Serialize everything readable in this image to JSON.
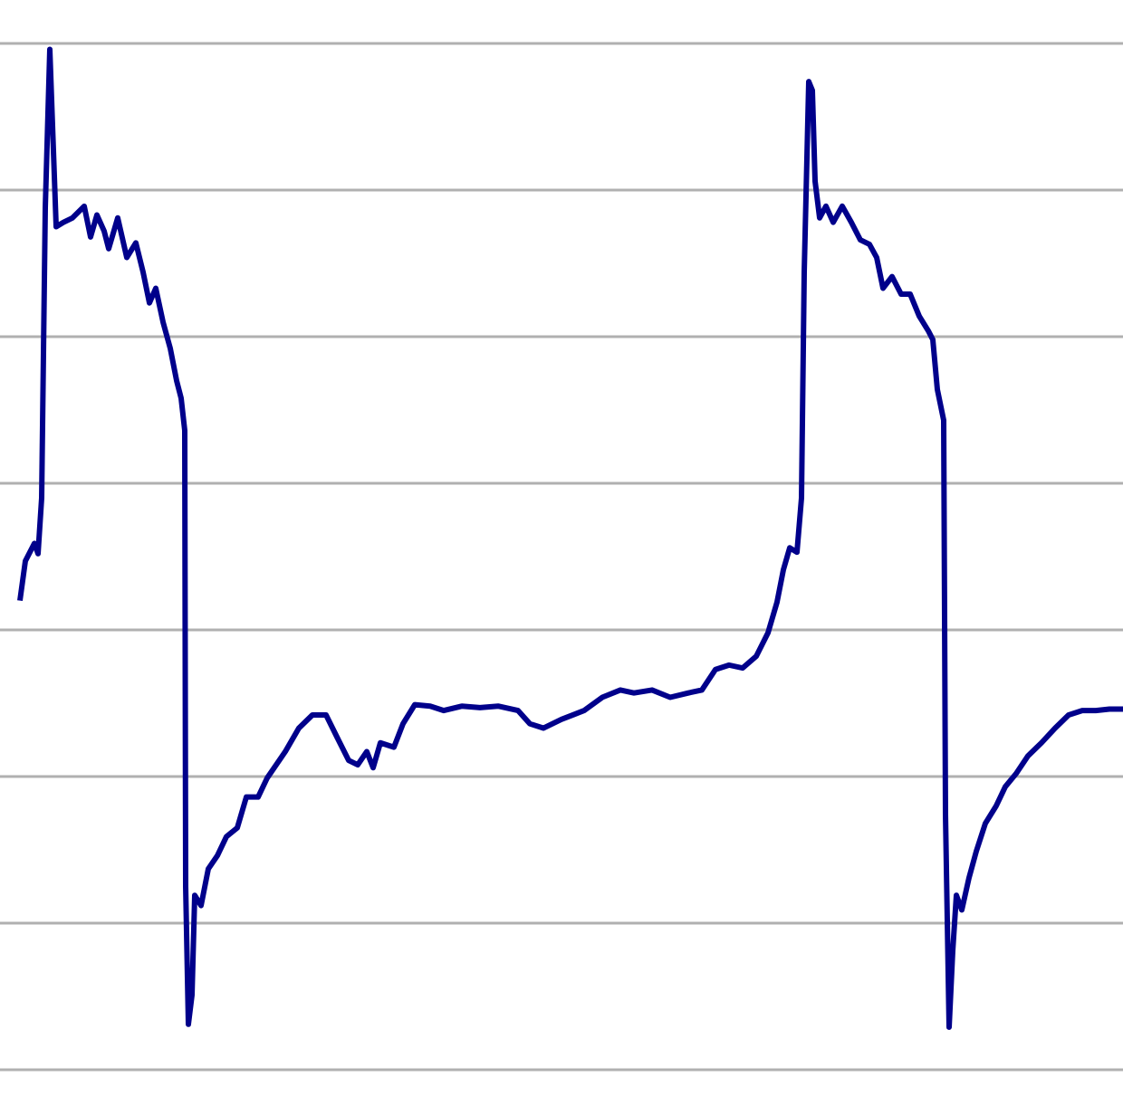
{
  "chart_data": {
    "type": "line",
    "color": "#00008b",
    "grid": true,
    "ylim": [
      0,
      7
    ],
    "yticks": [
      0,
      1,
      2,
      3,
      4,
      5,
      6,
      7
    ],
    "xlim": [
      0,
      1218
    ],
    "x": [
      0,
      6,
      16,
      20,
      24,
      28,
      33,
      40,
      48,
      58,
      71,
      78,
      85,
      93,
      98,
      108,
      118,
      128,
      136,
      143,
      150,
      158,
      166,
      173,
      178,
      182,
      183,
      186,
      190,
      193,
      200,
      208,
      218,
      228,
      240,
      250,
      263,
      273,
      283,
      293,
      308,
      323,
      338,
      350,
      363,
      373,
      383,
      390,
      398,
      413,
      423,
      436,
      453,
      468,
      488,
      508,
      528,
      550,
      563,
      578,
      598,
      623,
      643,
      663,
      678,
      698,
      718,
      738,
      753,
      768,
      783,
      798,
      813,
      826,
      836,
      843,
      850,
      858,
      863,
      866,
      871,
      875,
      878,
      883,
      890,
      898,
      908,
      918,
      928,
      938,
      946,
      953,
      963,
      973,
      983,
      993,
      1003,
      1008,
      1013,
      1020,
      1022,
      1026,
      1030,
      1034,
      1040,
      1048,
      1056,
      1066,
      1078,
      1088,
      1100,
      1113,
      1128,
      1143,
      1158,
      1173,
      1188,
      1203,
      1218
    ],
    "values": [
      3.2,
      3.47,
      3.59,
      3.52,
      3.9,
      5.88,
      6.96,
      5.75,
      5.78,
      5.81,
      5.89,
      5.68,
      5.83,
      5.72,
      5.6,
      5.81,
      5.54,
      5.64,
      5.44,
      5.23,
      5.33,
      5.1,
      4.92,
      4.7,
      4.58,
      4.36,
      1.25,
      0.31,
      0.51,
      1.19,
      1.12,
      1.37,
      1.46,
      1.59,
      1.65,
      1.86,
      1.86,
      1.99,
      2.08,
      2.17,
      2.33,
      2.42,
      2.42,
      2.27,
      2.11,
      2.08,
      2.17,
      2.06,
      2.23,
      2.2,
      2.36,
      2.49,
      2.48,
      2.45,
      2.48,
      2.47,
      2.48,
      2.45,
      2.36,
      2.33,
      2.39,
      2.45,
      2.54,
      2.59,
      2.57,
      2.59,
      2.54,
      2.57,
      2.59,
      2.73,
      2.76,
      2.74,
      2.82,
      2.98,
      3.19,
      3.41,
      3.56,
      3.53,
      3.9,
      5.44,
      6.74,
      6.68,
      6.06,
      5.81,
      5.89,
      5.78,
      5.89,
      5.78,
      5.66,
      5.63,
      5.54,
      5.33,
      5.41,
      5.29,
      5.29,
      5.14,
      5.04,
      4.98,
      4.64,
      4.43,
      1.74,
      0.29,
      0.81,
      1.19,
      1.09,
      1.31,
      1.49,
      1.68,
      1.8,
      1.93,
      2.02,
      2.14,
      2.23,
      2.33,
      2.42,
      2.45,
      2.45,
      2.46,
      2.46
    ]
  }
}
